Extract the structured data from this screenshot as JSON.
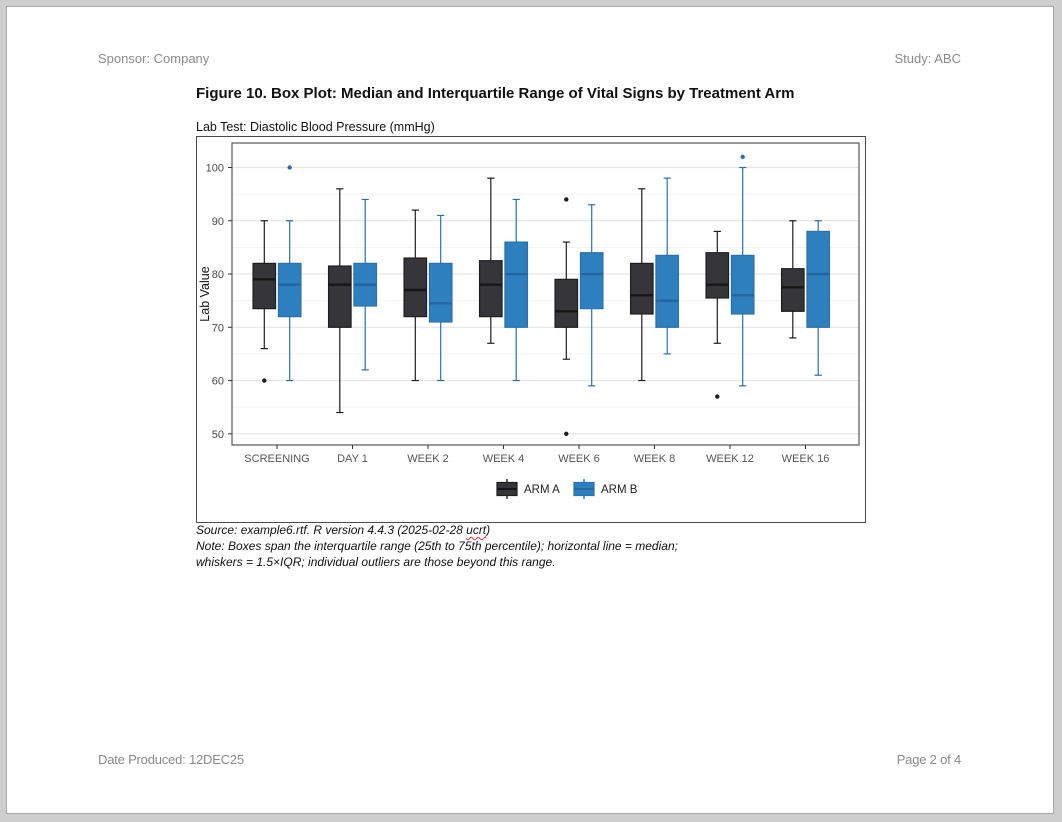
{
  "page": {
    "header": {
      "left": "Sponsor: Company",
      "right": "Study: ABC"
    },
    "title": "Figure 10. Box Plot: Median and Interquartile Range of Vital Signs by Treatment Arm",
    "subtitle": "Lab Test: Diastolic Blood Pressure (mmHg)",
    "footnotes": {
      "source_prefix": "Source: example6.rtf. R version 4.4.3 (2025-02-28 ",
      "source_misspelled": "ucrt",
      "source_suffix": ")",
      "note_line1": "Note: Boxes span the interquartile range (25th to 75th percentile); horizontal line = median;",
      "note_line2": "whiskers = 1.5×IQR; individual outliers are those beyond this range."
    },
    "footer": {
      "left": "Date Produced: 12DEC25",
      "right": "Page 2 of 4"
    }
  },
  "chart_data": {
    "type": "boxplot",
    "title": "",
    "xlabel": "",
    "ylabel": "Lab Value",
    "categories": [
      "SCREENING",
      "DAY 1",
      "WEEK 2",
      "WEEK 4",
      "WEEK 6",
      "WEEK 8",
      "WEEK 12",
      "WEEK 16"
    ],
    "yticks": [
      50,
      60,
      70,
      80,
      90,
      100
    ],
    "minor_yticks": [
      55,
      65,
      75,
      85,
      95
    ],
    "ylim": [
      47.9,
      104.6
    ],
    "grid": "on",
    "legend_position": "bottom",
    "colors": {
      "arm_a_fill": "#35353a",
      "arm_a_stroke": "#1e1e1e",
      "arm_a_median": "#161616",
      "arm_b_fill": "#2e7fbe",
      "arm_b_stroke": "#2871ac",
      "arm_b_median": "#2565a0",
      "grid_major": "#e6e6e6",
      "grid_minor": "#f3f3f3",
      "panel_border": "#585858",
      "tick_text": "#4a4a4a",
      "axis_text": "#555555"
    },
    "series": [
      {
        "name": "ARM A",
        "boxes": [
          {
            "whisker_low": 66,
            "q1": 73.5,
            "median": 79,
            "q3": 82,
            "whisker_high": 90,
            "outliers": [
              60
            ]
          },
          {
            "whisker_low": 54,
            "q1": 70,
            "median": 78,
            "q3": 81.5,
            "whisker_high": 96,
            "outliers": []
          },
          {
            "whisker_low": 60,
            "q1": 72,
            "median": 77,
            "q3": 83,
            "whisker_high": 92,
            "outliers": []
          },
          {
            "whisker_low": 67,
            "q1": 72,
            "median": 78,
            "q3": 82.5,
            "whisker_high": 98,
            "outliers": []
          },
          {
            "whisker_low": 64,
            "q1": 70,
            "median": 73,
            "q3": 79,
            "whisker_high": 86,
            "outliers": [
              94,
              50
            ]
          },
          {
            "whisker_low": 60,
            "q1": 72.5,
            "median": 76,
            "q3": 82,
            "whisker_high": 96,
            "outliers": []
          },
          {
            "whisker_low": 67,
            "q1": 75.5,
            "median": 78,
            "q3": 84,
            "whisker_high": 88,
            "outliers": [
              57
            ]
          },
          {
            "whisker_low": 68,
            "q1": 73,
            "median": 77.5,
            "q3": 81,
            "whisker_high": 90,
            "outliers": []
          }
        ]
      },
      {
        "name": "ARM B",
        "boxes": [
          {
            "whisker_low": 60,
            "q1": 72,
            "median": 78,
            "q3": 82,
            "whisker_high": 90,
            "outliers": [
              100
            ]
          },
          {
            "whisker_low": 62,
            "q1": 74,
            "median": 78,
            "q3": 82,
            "whisker_high": 94,
            "outliers": []
          },
          {
            "whisker_low": 60,
            "q1": 71,
            "median": 74.5,
            "q3": 82,
            "whisker_high": 91,
            "outliers": []
          },
          {
            "whisker_low": 60,
            "q1": 70,
            "median": 80,
            "q3": 86,
            "whisker_high": 94,
            "outliers": []
          },
          {
            "whisker_low": 59,
            "q1": 73.5,
            "median": 80,
            "q3": 84,
            "whisker_high": 93,
            "outliers": []
          },
          {
            "whisker_low": 65,
            "q1": 70,
            "median": 75,
            "q3": 83.5,
            "whisker_high": 98,
            "outliers": []
          },
          {
            "whisker_low": 59,
            "q1": 72.5,
            "median": 76,
            "q3": 83.5,
            "whisker_high": 100,
            "outliers": [
              102
            ]
          },
          {
            "whisker_low": 61,
            "q1": 70,
            "median": 80,
            "q3": 88,
            "whisker_high": 90,
            "outliers": []
          }
        ]
      }
    ],
    "legend_entries": [
      {
        "label": "ARM A"
      },
      {
        "label": "ARM B"
      }
    ]
  }
}
